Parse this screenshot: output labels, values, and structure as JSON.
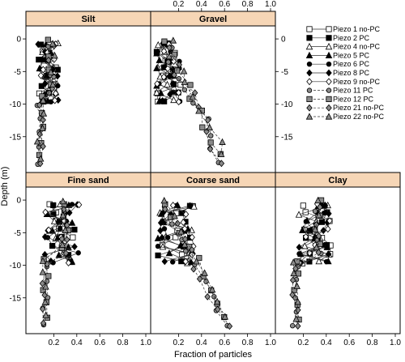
{
  "chart_data": {
    "type": "scatter",
    "xlabel": "Fraction of particles",
    "ylabel": "Depth (m)",
    "xlim": [
      0,
      1.0
    ],
    "ylim": [
      -20,
      1.5
    ],
    "x_ticks": [
      "0.2",
      "0.4",
      "0.6",
      "0.8",
      "1.0"
    ],
    "y_ticks": [
      "0",
      "-5",
      "-10",
      "-15"
    ],
    "panels": [
      {
        "name": "Silt",
        "center": 0.15,
        "spread": 0.09
      },
      {
        "name": "Gravel",
        "center": 0.1,
        "spread": 0.12
      },
      {
        "name": "Fine sand",
        "center": 0.27,
        "spread": 0.15
      },
      {
        "name": "Coarse sand",
        "center": 0.18,
        "spread": 0.16
      },
      {
        "name": "Clay",
        "center": 0.3,
        "spread": 0.14
      }
    ],
    "series": [
      {
        "name": "Piezo 1 no-PC",
        "marker": "square-open",
        "fill": "#ffffff",
        "line": "solid"
      },
      {
        "name": "Piezo 2 PC",
        "marker": "square",
        "fill": "#000000",
        "line": "solid"
      },
      {
        "name": "Piezo 4 no-PC",
        "marker": "triangle-open",
        "fill": "#ffffff",
        "line": "solid"
      },
      {
        "name": "Piezo 5 PC",
        "marker": "triangle",
        "fill": "#000000",
        "line": "solid"
      },
      {
        "name": "Piezo 6 PC",
        "marker": "circle",
        "fill": "#000000",
        "line": "solid"
      },
      {
        "name": "Piezo 8 PC",
        "marker": "diamond",
        "fill": "#000000",
        "line": "solid"
      },
      {
        "name": "Piezo 9 no-PC",
        "marker": "diamond-open",
        "fill": "#ffffff",
        "line": "solid"
      },
      {
        "name": "Piezo 11 PC",
        "marker": "circle",
        "fill": "#8a8a8a",
        "line": "dashed"
      },
      {
        "name": "Piezo 12 PC",
        "marker": "square",
        "fill": "#8a8a8a",
        "line": "dashed"
      },
      {
        "name": "Piezo 21 no-PC",
        "marker": "diamond",
        "fill": "#8a8a8a",
        "line": "dashed"
      },
      {
        "name": "Piezo 22 no-PC",
        "marker": "triangle",
        "fill": "#8a8a8a",
        "line": "dashed"
      }
    ],
    "grid": false,
    "legend_position": "right"
  }
}
